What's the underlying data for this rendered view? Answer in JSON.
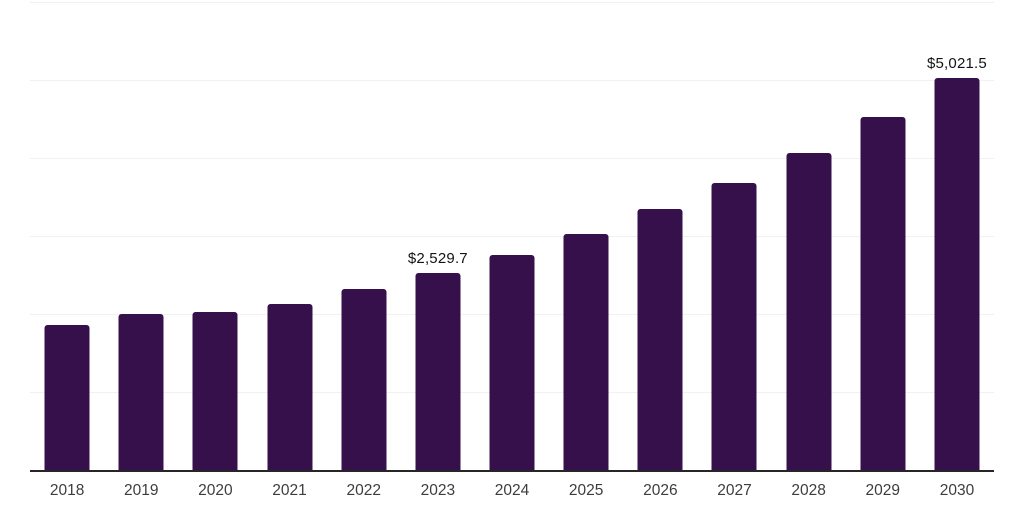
{
  "chart": {
    "background_color": "#ffffff",
    "bar_color": "#36104a",
    "gridline_color": "#f1f1f1",
    "axis_color": "#262626",
    "tick_label_color": "#3d3d3d",
    "value_label_color": "#141414"
  },
  "chart_data": {
    "type": "bar",
    "title": "",
    "xlabel": "",
    "ylabel": "",
    "categories": [
      "2018",
      "2019",
      "2020",
      "2021",
      "2022",
      "2023",
      "2024",
      "2025",
      "2026",
      "2027",
      "2028",
      "2029",
      "2030"
    ],
    "values": [
      1860,
      2005,
      2020,
      2125,
      2315,
      2529.7,
      2755,
      3030,
      3340,
      3675,
      4070,
      4520,
      5021.5
    ],
    "data_labels": {
      "2023": "$2,529.7",
      "2030": "$5,021.5"
    },
    "ylim": [
      0,
      6000
    ],
    "grid_interval": 1000,
    "grid": true,
    "y_tick_labels_visible": false,
    "legend": false,
    "bar_corner_radius": 3
  }
}
